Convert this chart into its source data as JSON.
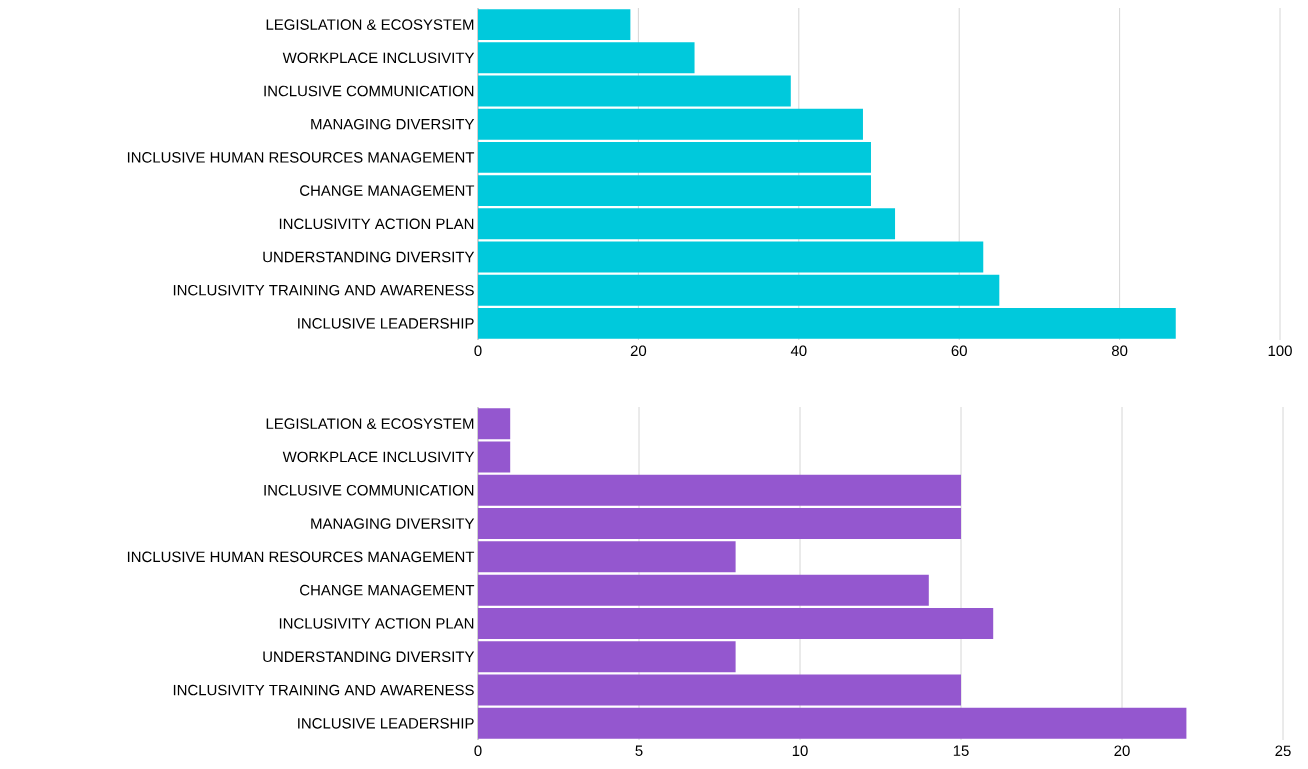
{
  "chart_data": [
    {
      "type": "bar",
      "orientation": "horizontal",
      "categories": [
        "LEGISLATION & ECOSYSTEM",
        "WORKPLACE INCLUSIVITY",
        "INCLUSIVE COMMUNICATION",
        "MANAGING DIVERSITY",
        "INCLUSIVE HUMAN RESOURCES MANAGEMENT",
        "CHANGE MANAGEMENT",
        "INCLUSIVITY ACTION PLAN",
        "UNDERSTANDING DIVERSITY",
        "INCLUSIVITY TRAINING AND AWARENESS",
        "INCLUSIVE LEADERSHIP"
      ],
      "values": [
        19,
        27,
        39,
        48,
        49,
        49,
        52,
        63,
        65,
        87
      ],
      "color": "#00c9dc",
      "xlim": [
        0,
        100
      ],
      "xticks": [
        0,
        20,
        40,
        60,
        80,
        100
      ],
      "grid": "x"
    },
    {
      "type": "bar",
      "orientation": "horizontal",
      "categories": [
        "LEGISLATION & ECOSYSTEM",
        "WORKPLACE INCLUSIVITY",
        "INCLUSIVE COMMUNICATION",
        "MANAGING DIVERSITY",
        "INCLUSIVE HUMAN RESOURCES MANAGEMENT",
        "CHANGE MANAGEMENT",
        "INCLUSIVITY ACTION PLAN",
        "UNDERSTANDING DIVERSITY",
        "INCLUSIVITY TRAINING AND AWARENESS",
        "INCLUSIVE LEADERSHIP"
      ],
      "values": [
        1,
        1,
        15,
        15,
        8,
        14,
        16,
        8,
        15,
        22
      ],
      "color": "#9457cf",
      "xlim": [
        0,
        25
      ],
      "xticks": [
        0,
        5,
        10,
        15,
        20,
        25
      ],
      "grid": "x"
    }
  ]
}
